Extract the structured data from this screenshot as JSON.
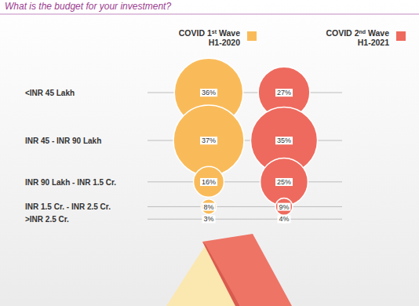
{
  "chart_data": {
    "type": "bubble",
    "title": "What is the budget for your investment?",
    "orientation": "horizontal",
    "categories": [
      "<INR 45 Lakh",
      "INR 45 - INR 90 Lakh",
      "INR 90 Lakh - INR 1.5 Cr.",
      "INR 1.5 Cr. - INR 2.5 Cr.",
      ">INR 2.5 Cr."
    ],
    "series": [
      {
        "name": "COVID 1st Wave H1-2020",
        "color": "#f9bb5a",
        "values": [
          36,
          37,
          16,
          8,
          3
        ],
        "value_labels": [
          "36%",
          "37%",
          "16%",
          "8%",
          "3%"
        ]
      },
      {
        "name": "COVID 2nd Wave H1-2021",
        "color": "#ee6a5e",
        "values": [
          27,
          35,
          25,
          9,
          4
        ],
        "value_labels": [
          "27%",
          "35%",
          "25%",
          "9%",
          "4%"
        ]
      }
    ],
    "data_labels": true,
    "grid": true,
    "legend": "upper right",
    "tick_labels": "y"
  }
}
